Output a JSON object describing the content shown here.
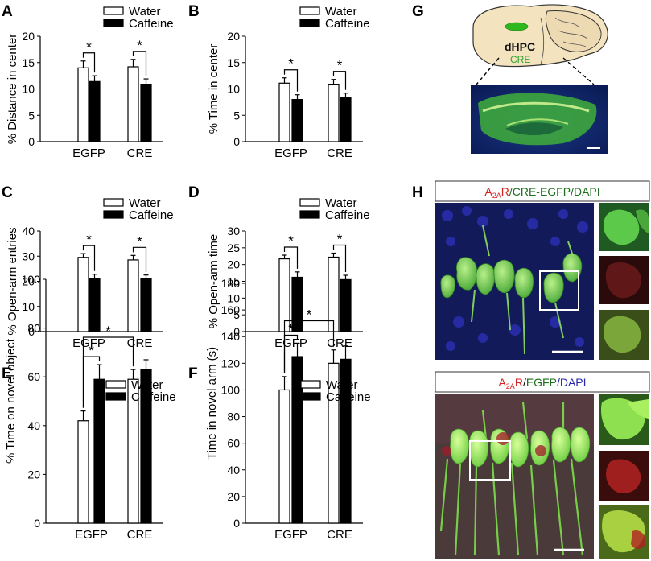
{
  "panels": {
    "A": "A",
    "B": "B",
    "C": "C",
    "D": "D",
    "E": "E",
    "F": "F",
    "G": "G",
    "H": "H"
  },
  "legend": {
    "water": "Water",
    "caffeine": "Caffeine"
  },
  "chart_data": [
    {
      "panel": "A",
      "type": "bar",
      "categories": [
        "EGFP",
        "CRE"
      ],
      "series": [
        {
          "name": "Water",
          "values": [
            14.0,
            14.2
          ],
          "errors": [
            1.3,
            1.4
          ],
          "color": "#ffffff"
        },
        {
          "name": "Caffeine",
          "values": [
            11.4,
            10.9
          ],
          "errors": [
            1.1,
            1.0
          ],
          "color": "#000000"
        }
      ],
      "ylabel": "% Distance in center",
      "ylim": [
        0,
        20
      ],
      "yticks": [
        0,
        5,
        10,
        15,
        20
      ],
      "significance": [
        {
          "type": "within",
          "group": 0,
          "label": "*"
        },
        {
          "type": "within",
          "group": 1,
          "label": "*"
        }
      ]
    },
    {
      "panel": "B",
      "type": "bar",
      "categories": [
        "EGFP",
        "CRE"
      ],
      "series": [
        {
          "name": "Water",
          "values": [
            11.1,
            10.9
          ],
          "errors": [
            1.0,
            0.9
          ],
          "color": "#ffffff"
        },
        {
          "name": "Caffeine",
          "values": [
            8.0,
            8.3
          ],
          "errors": [
            0.9,
            0.9
          ],
          "color": "#000000"
        }
      ],
      "ylabel": "% Time in center",
      "ylim": [
        0,
        20
      ],
      "yticks": [
        0,
        5,
        10,
        15,
        20
      ],
      "significance": [
        {
          "type": "within",
          "group": 0,
          "label": "*"
        },
        {
          "type": "within",
          "group": 1,
          "label": "*"
        }
      ]
    },
    {
      "panel": "C",
      "type": "bar",
      "categories": [
        "EGFP",
        "CRE"
      ],
      "series": [
        {
          "name": "Water",
          "values": [
            29.5,
            28.5
          ],
          "errors": [
            1.5,
            1.8
          ],
          "color": "#ffffff"
        },
        {
          "name": "Caffeine",
          "values": [
            21.0,
            21.0
          ],
          "errors": [
            1.8,
            1.5
          ],
          "color": "#000000"
        }
      ],
      "ylabel": "% Open-arm entries",
      "ylim": [
        0,
        40
      ],
      "yticks": [
        0,
        10,
        20,
        30,
        40
      ],
      "significance": [
        {
          "type": "within",
          "group": 0,
          "label": "*"
        },
        {
          "type": "within",
          "group": 1,
          "label": "*"
        }
      ]
    },
    {
      "panel": "D",
      "type": "bar",
      "categories": [
        "EGFP",
        "CRE"
      ],
      "series": [
        {
          "name": "Water",
          "values": [
            21.7,
            22.2
          ],
          "errors": [
            1.1,
            1.2
          ],
          "color": "#ffffff"
        },
        {
          "name": "Caffeine",
          "values": [
            16.2,
            15.5
          ],
          "errors": [
            1.6,
            1.3
          ],
          "color": "#000000"
        }
      ],
      "ylabel": "% Open-arm time",
      "ylim": [
        0,
        30
      ],
      "yticks": [
        0,
        5,
        10,
        15,
        20,
        25,
        30
      ],
      "significance": [
        {
          "type": "within",
          "group": 0,
          "label": "*"
        },
        {
          "type": "within",
          "group": 1,
          "label": "*"
        }
      ]
    },
    {
      "panel": "E",
      "type": "bar",
      "categories": [
        "EGFP",
        "CRE"
      ],
      "series": [
        {
          "name": "Water",
          "values": [
            42,
            59
          ],
          "errors": [
            4,
            4
          ],
          "color": "#ffffff"
        },
        {
          "name": "Caffeine",
          "values": [
            59,
            63
          ],
          "errors": [
            6,
            4
          ],
          "color": "#000000"
        }
      ],
      "ylabel": "% Time on novel object",
      "ylim": [
        0,
        100
      ],
      "yticks": [
        0,
        20,
        40,
        60,
        80,
        100
      ],
      "significance": [
        {
          "type": "within",
          "group": 0,
          "label": "*"
        },
        {
          "type": "across",
          "from": [
            0,
            0
          ],
          "to": [
            1,
            0
          ],
          "label": "*"
        }
      ]
    },
    {
      "panel": "F",
      "type": "bar",
      "categories": [
        "EGFP",
        "CRE"
      ],
      "series": [
        {
          "name": "Water",
          "values": [
            100,
            120
          ],
          "errors": [
            10,
            10
          ],
          "color": "#ffffff"
        },
        {
          "name": "Caffeine",
          "values": [
            125,
            123
          ],
          "errors": [
            10,
            10
          ],
          "color": "#000000"
        }
      ],
      "ylabel": "Time in novel arm (s)",
      "ylim": [
        0,
        180
      ],
      "yticks": [
        0,
        20,
        40,
        60,
        80,
        100,
        120,
        140,
        160,
        180
      ],
      "significance": [
        {
          "type": "within",
          "group": 0,
          "label": "*"
        },
        {
          "type": "across",
          "from": [
            0,
            0
          ],
          "to": [
            1,
            0
          ],
          "label": "*"
        }
      ]
    }
  ],
  "panel_g": {
    "region": "dHPC",
    "label": "CRE"
  },
  "panel_h": {
    "top_title": {
      "part1": "A",
      "sub": "2A",
      "part2": "R",
      "part3": "/CRE-EGFP/DAPI"
    },
    "bottom_title": {
      "part1": "A",
      "sub": "2A",
      "part2": "R",
      "sep1": "/",
      "part3": "EGFP",
      "part4": "/DAPI"
    }
  },
  "colors": {
    "green": "#3fae3f",
    "red": "#d42020",
    "blue": "#2a2aa8"
  }
}
